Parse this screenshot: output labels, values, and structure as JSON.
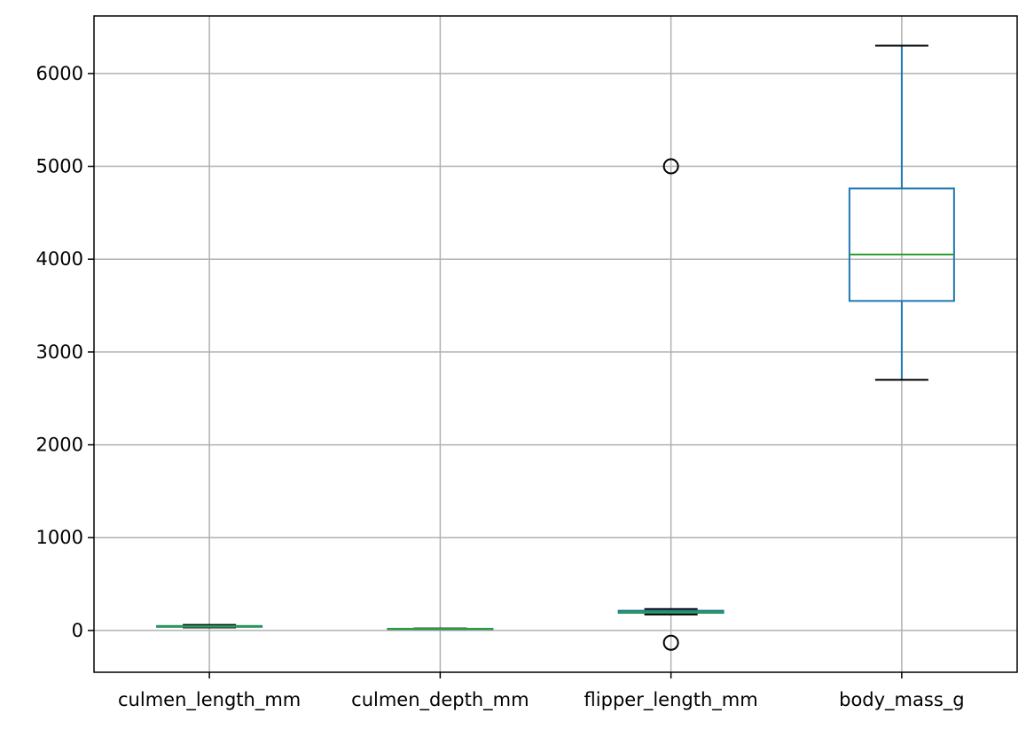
{
  "chart_data": {
    "type": "box",
    "categories": [
      "culmen_length_mm",
      "culmen_depth_mm",
      "flipper_length_mm",
      "body_mass_g"
    ],
    "boxes": [
      {
        "name": "culmen_length_mm",
        "whisker_low": 32.1,
        "q1": 39.2,
        "median": 44.5,
        "q3": 48.5,
        "whisker_high": 59.6,
        "outliers": []
      },
      {
        "name": "culmen_depth_mm",
        "whisker_low": 13.1,
        "q1": 15.6,
        "median": 17.3,
        "q3": 18.7,
        "whisker_high": 21.5,
        "outliers": []
      },
      {
        "name": "flipper_length_mm",
        "whisker_low": 172,
        "q1": 190,
        "median": 197,
        "q3": 213,
        "whisker_high": 231,
        "outliers": [
          5000,
          -132
        ]
      },
      {
        "name": "body_mass_g",
        "whisker_low": 2700,
        "q1": 3550,
        "median": 4050,
        "q3": 4762,
        "whisker_high": 6300,
        "outliers": []
      }
    ],
    "yticks": [
      0,
      1000,
      2000,
      3000,
      4000,
      5000,
      6000
    ],
    "ylim": [
      -450,
      6620
    ],
    "grid": true,
    "colors": {
      "box": "#1f77b4",
      "median": "#2ca02c",
      "caps": "#000000",
      "grid": "#b0b0b0",
      "axes": "#000000"
    }
  }
}
